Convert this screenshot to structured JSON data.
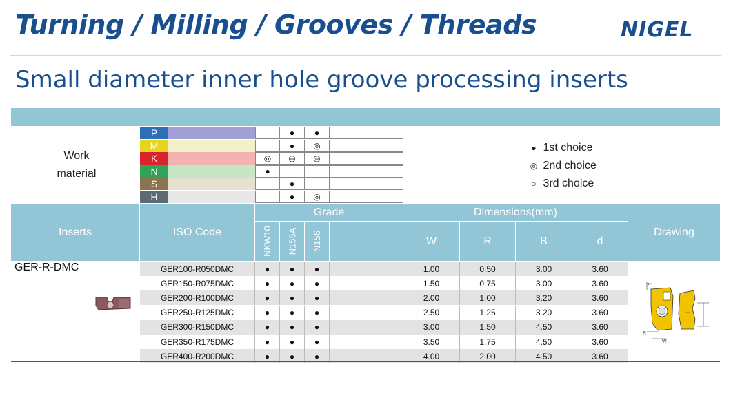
{
  "header": {
    "title": "Turning / Milling / Grooves / Threads",
    "logo": "NIGEL",
    "subtitle": "Small diameter inner hole groove processing inserts"
  },
  "work_material": {
    "label_line1": "Work",
    "label_line2": "material",
    "rows": [
      {
        "letter": "P",
        "color": "#2b6fb6",
        "bar": "#a29fd6",
        "marks": [
          "",
          "●",
          "●",
          "",
          "",
          ""
        ]
      },
      {
        "letter": "M",
        "color": "#e6d51e",
        "bar": "#f3f1c6",
        "marks": [
          "",
          "●",
          "◎",
          "",
          "",
          ""
        ]
      },
      {
        "letter": "K",
        "color": "#d8242a",
        "bar": "#f3b3b3",
        "marks": [
          "◎",
          "◎",
          "◎",
          "",
          "",
          ""
        ]
      },
      {
        "letter": "N",
        "color": "#2ea454",
        "bar": "#c8e6c6",
        "marks": [
          "●",
          "",
          "",
          "",
          "",
          ""
        ]
      },
      {
        "letter": "S",
        "color": "#8a7450",
        "bar": "#e6e0cf",
        "marks": [
          "",
          "●",
          "",
          "",
          "",
          ""
        ]
      },
      {
        "letter": "H",
        "color": "#5d6a74",
        "bar": "#e8e8e8",
        "marks": [
          "",
          "●",
          "◎",
          "",
          "",
          ""
        ]
      }
    ]
  },
  "legend": [
    {
      "symbol": "●",
      "label": "1st choice"
    },
    {
      "symbol": "◎",
      "label": "2nd choice"
    },
    {
      "symbol": "○",
      "label": "3rd choice"
    }
  ],
  "table_header": {
    "inserts": "Inserts",
    "iso_code": "ISO Code",
    "grade": "Grade",
    "grades": [
      "NKW10",
      "N155A",
      "N156",
      "",
      "",
      ""
    ],
    "dimensions": "Dimensions(mm)",
    "dim_cols": [
      "W",
      "R",
      "B",
      "d"
    ],
    "drawing": "Drawing"
  },
  "insert_family": "GER-R-DMC",
  "rows": [
    {
      "code": "GER100-R050DMC",
      "grades": [
        "●",
        "●",
        "●",
        "",
        "",
        ""
      ],
      "W": "1.00",
      "R": "0.50",
      "B": "3.00",
      "d": "3.60"
    },
    {
      "code": "GER150-R075DMC",
      "grades": [
        "●",
        "●",
        "●",
        "",
        "",
        ""
      ],
      "W": "1.50",
      "R": "0.75",
      "B": "3.00",
      "d": "3.60"
    },
    {
      "code": "GER200-R100DMC",
      "grades": [
        "●",
        "●",
        "●",
        "",
        "",
        ""
      ],
      "W": "2.00",
      "R": "1.00",
      "B": "3.20",
      "d": "3.60"
    },
    {
      "code": "GER250-R125DMC",
      "grades": [
        "●",
        "●",
        "●",
        "",
        "",
        ""
      ],
      "W": "2.50",
      "R": "1.25",
      "B": "3.20",
      "d": "3.60"
    },
    {
      "code": "GER300-R150DMC",
      "grades": [
        "●",
        "●",
        "●",
        "",
        "",
        ""
      ],
      "W": "3.00",
      "R": "1.50",
      "B": "4.50",
      "d": "3.60"
    },
    {
      "code": "GER350-R175DMC",
      "grades": [
        "●",
        "●",
        "●",
        "",
        "",
        ""
      ],
      "W": "3.50",
      "R": "1.75",
      "B": "4.50",
      "d": "3.60"
    },
    {
      "code": "GER400-R200DMC",
      "grades": [
        "●",
        "●",
        "●",
        "",
        "",
        ""
      ],
      "W": "4.00",
      "R": "2.00",
      "B": "4.50",
      "d": "3.60"
    }
  ],
  "drawing_labels": {
    "angle": "2°",
    "r": "R",
    "w": "W"
  },
  "colors": {
    "header_blue": "#1a4f8f",
    "table_header": "#92c5d6",
    "row_shade": "#e3e3e3"
  }
}
